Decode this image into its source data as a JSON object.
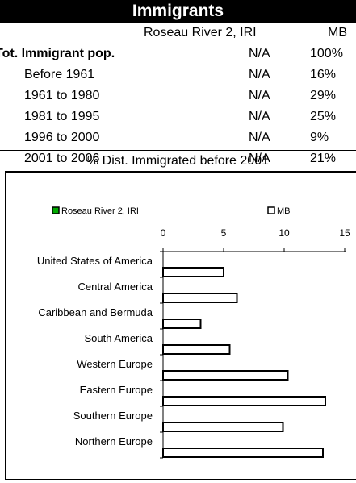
{
  "header": {
    "title": "Immigrants"
  },
  "table": {
    "col_place": "Roseau River 2, IRI",
    "col_prov": "MB",
    "rows": [
      {
        "label": "Tot. Immigrant pop.",
        "v1": "N/A",
        "v2": "100%",
        "bold": true
      },
      {
        "label": "Before 1961",
        "v1": "N/A",
        "v2": "16%"
      },
      {
        "label": "1961 to 1980",
        "v1": "N/A",
        "v2": "29%"
      },
      {
        "label": "1981 to 1995",
        "v1": "N/A",
        "v2": "25%"
      },
      {
        "label": "1996 to 2000",
        "v1": "N/A",
        "v2": "9%"
      },
      {
        "label": "2001 to 2006",
        "v1": "N/A",
        "v2": "21%"
      }
    ]
  },
  "subtitle": "% Dist. Immigrated before 2001",
  "chart_data": {
    "type": "bar",
    "orientation": "horizontal",
    "categories": [
      "United States of America",
      "Central America",
      "Caribbean and Bermuda",
      "South America",
      "Western Europe",
      "Eastern Europe",
      "Southern Europe",
      "Northern Europe"
    ],
    "series": [
      {
        "name": "Roseau River 2, IRI",
        "color": "#00aa00",
        "values": [
          0,
          0,
          0,
          0,
          0,
          0,
          0,
          0
        ]
      },
      {
        "name": "MB",
        "color": "#ffffff",
        "values": [
          5.0,
          6.1,
          3.1,
          5.5,
          10.3,
          13.4,
          9.9,
          13.2
        ]
      }
    ],
    "xlim": [
      0,
      15
    ],
    "xticks": [
      0,
      5,
      10,
      15
    ],
    "legend": "top"
  }
}
